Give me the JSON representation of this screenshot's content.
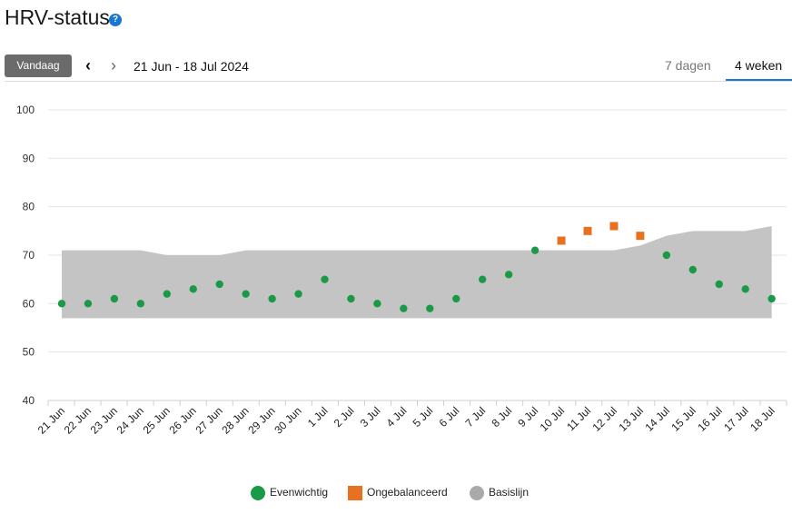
{
  "header": {
    "title": "HRV-status",
    "help_icon": "?",
    "today_label": "Vandaag",
    "prev_icon": "‹",
    "next_icon": "›",
    "date_range": "21 Jun - 18 Jul 2024",
    "tabs": [
      {
        "label": "7 dagen",
        "active": false
      },
      {
        "label": "4 weken",
        "active": true
      }
    ]
  },
  "chart_data": {
    "type": "scatter",
    "title": "",
    "xlabel": "",
    "ylabel": "",
    "ylim": [
      40,
      100
    ],
    "yticks": [
      40,
      50,
      60,
      70,
      80,
      90,
      100
    ],
    "grid": true,
    "legend_position": "bottom",
    "categories": [
      "21 Jun",
      "22 Jun",
      "23 Jun",
      "24 Jun",
      "25 Jun",
      "26 Jun",
      "27 Jun",
      "28 Jun",
      "29 Jun",
      "30 Jun",
      "1 Jul",
      "2 Jul",
      "3 Jul",
      "4 Jul",
      "5 Jul",
      "6 Jul",
      "7 Jul",
      "8 Jul",
      "9 Jul",
      "10 Jul",
      "11 Jul",
      "12 Jul",
      "13 Jul",
      "14 Jul",
      "15 Jul",
      "16 Jul",
      "17 Jul",
      "18 Jul"
    ],
    "baseline": {
      "name": "Basislijn",
      "color": "#c4c4c4",
      "lower": [
        57,
        57,
        57,
        57,
        57,
        57,
        57,
        57,
        57,
        57,
        57,
        57,
        57,
        57,
        57,
        57,
        57,
        57,
        57,
        57,
        57,
        57,
        57,
        57,
        57,
        57,
        57,
        57
      ],
      "upper": [
        71,
        71,
        71,
        71,
        70,
        70,
        70,
        71,
        71,
        71,
        71,
        71,
        71,
        71,
        71,
        71,
        71,
        71,
        71,
        71,
        71,
        71,
        72,
        74,
        75,
        75,
        75,
        76
      ]
    },
    "series": [
      {
        "name": "Evenwichtig",
        "marker": "circle",
        "color": "#1a9a46",
        "points": [
          [
            0,
            60
          ],
          [
            1,
            60
          ],
          [
            2,
            61
          ],
          [
            3,
            60
          ],
          [
            4,
            62
          ],
          [
            5,
            63
          ],
          [
            6,
            64
          ],
          [
            7,
            62
          ],
          [
            8,
            61
          ],
          [
            9,
            62
          ],
          [
            10,
            65
          ],
          [
            11,
            61
          ],
          [
            12,
            60
          ],
          [
            13,
            59
          ],
          [
            14,
            59
          ],
          [
            15,
            61
          ],
          [
            16,
            65
          ],
          [
            17,
            66
          ],
          [
            18,
            71
          ],
          [
            23,
            70
          ],
          [
            24,
            67
          ],
          [
            25,
            64
          ],
          [
            26,
            63
          ],
          [
            27,
            61
          ]
        ]
      },
      {
        "name": "Ongebalanceerd",
        "marker": "square",
        "color": "#e8711f",
        "points": [
          [
            19,
            73
          ],
          [
            20,
            75
          ],
          [
            21,
            76
          ],
          [
            22,
            74
          ]
        ]
      }
    ]
  },
  "legend": {
    "items": [
      {
        "label": "Evenwichtig",
        "color": "#1a9a46",
        "shape": "circle"
      },
      {
        "label": "Ongebalanceerd",
        "color": "#e8711f",
        "shape": "square"
      },
      {
        "label": "Basislijn",
        "color": "#a9a9a9",
        "shape": "circle"
      }
    ]
  }
}
